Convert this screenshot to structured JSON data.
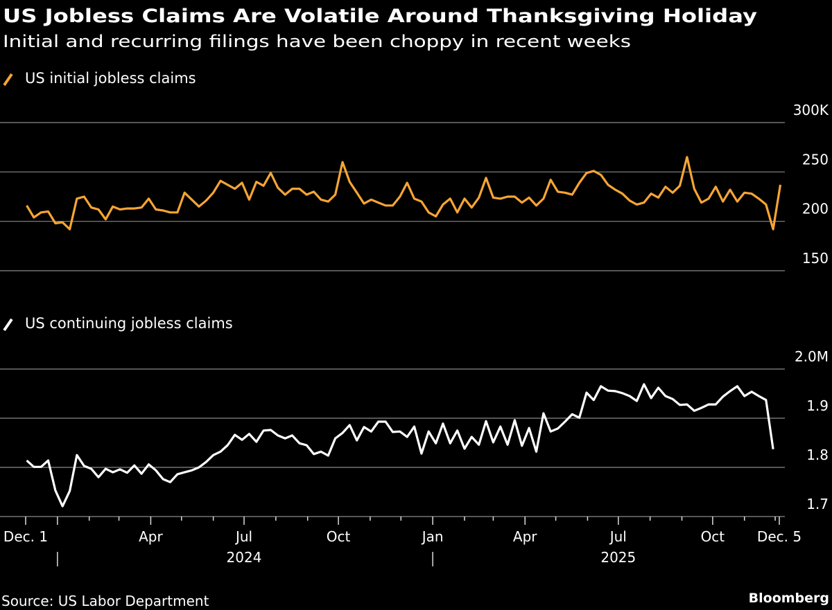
{
  "header": {
    "title": "US Jobless Claims Are Volatile Around Thanksgiving Holiday",
    "subtitle": "Initial and recurring filings have been choppy in recent weeks"
  },
  "footer": {
    "source": "Source: US Labor Department",
    "brand": "Bloomberg"
  },
  "colors": {
    "initial": "#f7a534",
    "continuing": "#ffffff",
    "background": "#000000",
    "grid": "#8a8a8a"
  },
  "chart_data": [
    {
      "type": "line",
      "title": "",
      "legend": "top-left",
      "grid": true,
      "ylim": [
        150,
        300
      ],
      "yticks": [
        {
          "value": 300,
          "label": "300K"
        },
        {
          "value": 250,
          "label": "250"
        },
        {
          "value": 200,
          "label": "200"
        },
        {
          "value": 150,
          "label": "150"
        }
      ],
      "series": [
        {
          "name": "US initial jobless claims",
          "color": "#f7a534",
          "x": [
            "2023-12-02",
            "2023-12-09",
            "2023-12-16",
            "2023-12-23",
            "2023-12-30",
            "2024-01-06",
            "2024-01-13",
            "2024-01-20",
            "2024-01-27",
            "2024-02-03",
            "2024-02-10",
            "2024-02-17",
            "2024-02-24",
            "2024-03-02",
            "2024-03-09",
            "2024-03-16",
            "2024-03-23",
            "2024-03-30",
            "2024-04-06",
            "2024-04-13",
            "2024-04-20",
            "2024-04-27",
            "2024-05-04",
            "2024-05-11",
            "2024-05-18",
            "2024-05-25",
            "2024-06-01",
            "2024-06-08",
            "2024-06-15",
            "2024-06-22",
            "2024-06-29",
            "2024-07-06",
            "2024-07-13",
            "2024-07-20",
            "2024-07-27",
            "2024-08-03",
            "2024-08-10",
            "2024-08-17",
            "2024-08-24",
            "2024-08-31",
            "2024-09-07",
            "2024-09-14",
            "2024-09-21",
            "2024-09-28",
            "2024-10-05",
            "2024-10-12",
            "2024-10-19",
            "2024-10-26",
            "2024-11-02",
            "2024-11-09",
            "2024-11-16",
            "2024-11-23",
            "2024-11-30",
            "2024-12-07",
            "2024-12-14",
            "2024-12-21",
            "2024-12-28",
            "2025-01-04",
            "2025-01-11",
            "2025-01-18",
            "2025-01-25",
            "2025-02-01",
            "2025-02-08",
            "2025-02-15",
            "2025-02-22",
            "2025-03-01",
            "2025-03-08",
            "2025-03-15",
            "2025-03-22",
            "2025-03-29",
            "2025-04-05",
            "2025-04-12",
            "2025-04-19",
            "2025-04-26",
            "2025-05-03",
            "2025-05-10",
            "2025-05-17",
            "2025-05-24",
            "2025-05-31",
            "2025-06-07",
            "2025-06-14",
            "2025-06-21",
            "2025-06-28",
            "2025-07-05",
            "2025-07-12",
            "2025-07-19",
            "2025-07-26",
            "2025-08-02",
            "2025-08-09",
            "2025-08-16",
            "2025-08-23",
            "2025-08-30",
            "2025-09-06",
            "2025-09-13",
            "2025-09-20",
            "2025-09-27",
            "2025-10-04",
            "2025-10-11",
            "2025-10-18",
            "2025-10-25",
            "2025-11-01",
            "2025-11-08",
            "2025-11-15",
            "2025-11-22",
            "2025-11-29",
            "2025-12-06"
          ],
          "values": [
            216,
            204,
            209,
            210,
            198,
            199,
            192,
            223,
            225,
            214,
            212,
            202,
            215,
            212,
            213,
            213,
            214,
            223,
            212,
            211,
            209,
            209,
            229,
            222,
            215,
            221,
            229,
            241,
            237,
            233,
            239,
            222,
            240,
            236,
            249,
            234,
            227,
            233,
            233,
            227,
            230,
            222,
            220,
            227,
            260,
            240,
            229,
            218,
            222,
            219,
            216,
            216,
            225,
            239,
            223,
            220,
            209,
            205,
            217,
            223,
            209,
            223,
            214,
            224,
            244,
            224,
            223,
            225,
            225,
            219,
            224,
            216,
            223,
            242,
            230,
            229,
            227,
            239,
            249,
            251,
            247,
            237,
            232,
            228,
            221,
            217,
            219,
            228,
            224,
            235,
            229,
            236,
            265,
            233,
            219,
            223,
            235,
            220,
            232,
            220,
            229,
            228,
            223,
            217,
            192,
            237
          ]
        }
      ]
    },
    {
      "type": "line",
      "title": "",
      "legend": "top-left",
      "grid": true,
      "ylim": [
        1.7,
        2.0
      ],
      "yticks": [
        {
          "value": 2.0,
          "label": "2.0M"
        },
        {
          "value": 1.9,
          "label": "1.9"
        },
        {
          "value": 1.8,
          "label": "1.8"
        },
        {
          "value": 1.7,
          "label": "1.7"
        }
      ],
      "xticks": [
        {
          "date": "2023-12-01",
          "label": "Dec. 1"
        },
        {
          "date": "2024-04-01",
          "label": "Apr"
        },
        {
          "date": "2024-07-01",
          "label": "Jul"
        },
        {
          "date": "2024-10-01",
          "label": "Oct"
        },
        {
          "date": "2025-01-01",
          "label": "Jan"
        },
        {
          "date": "2025-04-01",
          "label": "Apr"
        },
        {
          "date": "2025-07-01",
          "label": "Jul"
        },
        {
          "date": "2025-10-01",
          "label": "Oct"
        },
        {
          "date": "2025-12-05",
          "label": "Dec. 5"
        }
      ],
      "years": [
        {
          "label": "2024",
          "separator": "2024-01-01"
        },
        {
          "label": "2025",
          "separator": "2025-01-01"
        }
      ],
      "series": [
        {
          "name": "US continuing jobless claims",
          "color": "#ffffff",
          "values": [
            1.814,
            1.801,
            1.801,
            1.814,
            1.753,
            1.721,
            1.752,
            1.825,
            1.803,
            1.797,
            1.78,
            1.797,
            1.79,
            1.796,
            1.789,
            1.804,
            1.787,
            1.806,
            1.794,
            1.776,
            1.77,
            1.786,
            1.79,
            1.794,
            1.8,
            1.811,
            1.825,
            1.832,
            1.845,
            1.866,
            1.856,
            1.868,
            1.852,
            1.875,
            1.876,
            1.865,
            1.859,
            1.865,
            1.849,
            1.845,
            1.827,
            1.832,
            1.824,
            1.859,
            1.87,
            1.886,
            1.855,
            1.882,
            1.873,
            1.893,
            1.893,
            1.872,
            1.873,
            1.862,
            1.883,
            1.828,
            1.873,
            1.849,
            1.889,
            1.849,
            1.875,
            1.838,
            1.862,
            1.846,
            1.894,
            1.851,
            1.883,
            1.846,
            1.896,
            1.844,
            1.88,
            1.832,
            1.91,
            1.873,
            1.879,
            1.893,
            1.908,
            1.901,
            1.952,
            1.937,
            1.965,
            1.956,
            1.955,
            1.951,
            1.945,
            1.935,
            1.969,
            1.941,
            1.962,
            1.945,
            1.939,
            1.927,
            1.928,
            1.915,
            1.921,
            1.928,
            1.928,
            1.944,
            1.955,
            1.965,
            1.945,
            1.954,
            1.945,
            1.937,
            1.837
          ]
        }
      ]
    }
  ]
}
